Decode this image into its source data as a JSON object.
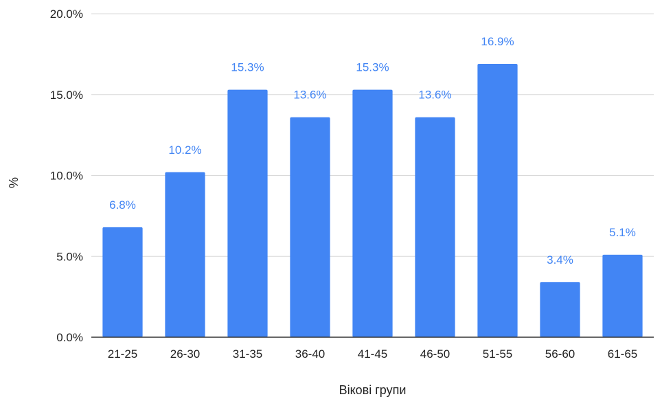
{
  "chart_data": {
    "type": "bar",
    "title": "",
    "xlabel": "Вікові групи",
    "ylabel": "%",
    "categories": [
      "21-25",
      "26-30",
      "31-35",
      "36-40",
      "41-45",
      "46-50",
      "51-55",
      "56-60",
      "61-65"
    ],
    "values": [
      6.8,
      10.2,
      15.3,
      13.6,
      15.3,
      13.6,
      16.9,
      3.4,
      5.1
    ],
    "data_labels": [
      "6.8%",
      "10.2%",
      "15.3%",
      "13.6%",
      "15.3%",
      "13.6%",
      "16.9%",
      "3.4%",
      "5.1%"
    ],
    "ylim": [
      0,
      20
    ],
    "yticks": [
      0,
      5,
      10,
      15,
      20
    ],
    "ytick_labels": [
      "0.0%",
      "5.0%",
      "10.0%",
      "15.0%",
      "20.0%"
    ],
    "grid": true,
    "legend": "none",
    "colors": {
      "bar": "#4285f4",
      "data_label": "#4285f4",
      "grid": "#d9d9d9",
      "axis": "#333333"
    }
  }
}
